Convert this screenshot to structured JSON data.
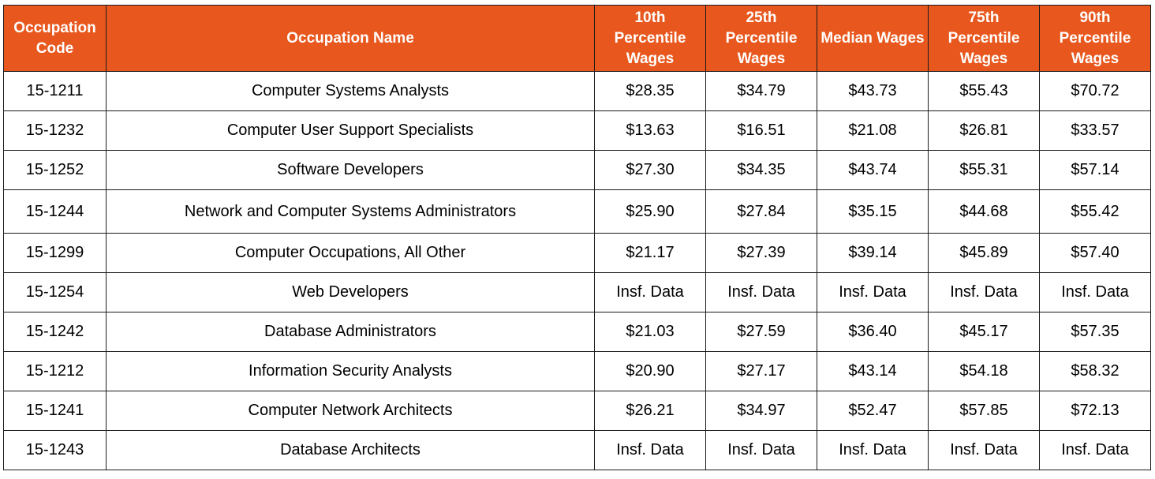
{
  "chart_data": {
    "type": "table",
    "columns": [
      "Occupation Code",
      "Occupation Name",
      "10th Percentile Wages",
      "25th Percentile Wages",
      "Median Wages",
      "75th Percentile Wages",
      "90th Percentile Wages"
    ],
    "rows": [
      [
        "15-1211",
        "Computer Systems Analysts",
        "$28.35",
        "$34.79",
        "$43.73",
        "$55.43",
        "$70.72"
      ],
      [
        "15-1232",
        "Computer User Support Specialists",
        "$13.63",
        "$16.51",
        "$21.08",
        "$26.81",
        "$33.57"
      ],
      [
        "15-1252",
        "Software Developers",
        "$27.30",
        "$34.35",
        "$43.74",
        "$55.31",
        "$57.14"
      ],
      [
        "15-1244",
        "Network and Computer Systems Administrators",
        "$25.90",
        "$27.84",
        "$35.15",
        "$44.68",
        "$55.42"
      ],
      [
        "15-1299",
        "Computer Occupations, All Other",
        "$21.17",
        "$27.39",
        "$39.14",
        "$45.89",
        "$57.40"
      ],
      [
        "15-1254",
        "Web Developers",
        "Insf. Data",
        "Insf. Data",
        "Insf. Data",
        "Insf. Data",
        "Insf. Data"
      ],
      [
        "15-1242",
        "Database Administrators",
        "$21.03",
        "$27.59",
        "$36.40",
        "$45.17",
        "$57.35"
      ],
      [
        "15-1212",
        "Information Security Analysts",
        "$20.90",
        "$27.17",
        "$43.14",
        "$54.18",
        "$58.32"
      ],
      [
        "15-1241",
        "Computer Network Architects",
        "$26.21",
        "$34.97",
        "$52.47",
        "$57.85",
        "$72.13"
      ],
      [
        "15-1243",
        "Database Architects",
        "Insf. Data",
        "Insf. Data",
        "Insf. Data",
        "Insf. Data",
        "Insf. Data"
      ]
    ]
  },
  "style": {
    "header_bg": "#e8581e",
    "header_text": "#ffffff",
    "border": "#1a1a1a",
    "cell_text": "#000000"
  }
}
